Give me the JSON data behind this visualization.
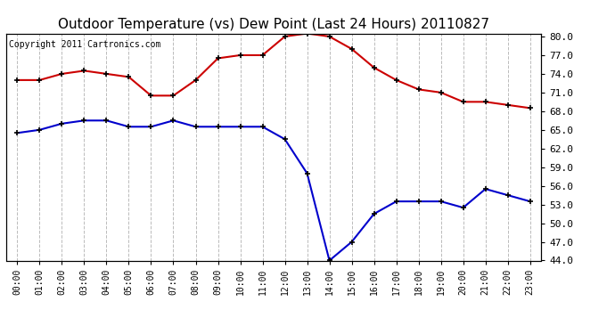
{
  "title": "Outdoor Temperature (vs) Dew Point (Last 24 Hours) 20110827",
  "copyright": "Copyright 2011 Cartronics.com",
  "hours": [
    "00:00",
    "01:00",
    "02:00",
    "03:00",
    "04:00",
    "05:00",
    "06:00",
    "07:00",
    "08:00",
    "09:00",
    "10:00",
    "11:00",
    "12:00",
    "13:00",
    "14:00",
    "15:00",
    "16:00",
    "17:00",
    "18:00",
    "19:00",
    "20:00",
    "21:00",
    "22:00",
    "23:00"
  ],
  "temp_red": [
    73.0,
    73.0,
    74.0,
    74.5,
    74.0,
    73.5,
    70.5,
    70.5,
    73.0,
    76.5,
    77.0,
    77.0,
    80.0,
    80.5,
    80.0,
    78.0,
    75.0,
    73.0,
    71.5,
    71.0,
    69.5,
    69.5,
    69.0,
    68.5
  ],
  "dew_blue": [
    64.5,
    65.0,
    66.0,
    66.5,
    66.5,
    65.5,
    65.5,
    66.5,
    65.5,
    65.5,
    65.5,
    65.5,
    63.5,
    58.0,
    44.0,
    47.0,
    51.5,
    53.5,
    53.5,
    53.5,
    52.5,
    55.5,
    54.5,
    53.5
  ],
  "temp_color": "#cc0000",
  "dew_color": "#0000cc",
  "bg_color": "#ffffff",
  "grid_color": "#bbbbbb",
  "ylim": [
    44.0,
    80.5
  ],
  "yticks": [
    44.0,
    47.0,
    50.0,
    53.0,
    56.0,
    59.0,
    62.0,
    65.0,
    68.0,
    71.0,
    74.0,
    77.0,
    80.0
  ],
  "title_fontsize": 11,
  "copyright_fontsize": 7,
  "marker": "+",
  "markersize": 5,
  "markeredgewidth": 1.2,
  "linewidth": 1.5
}
